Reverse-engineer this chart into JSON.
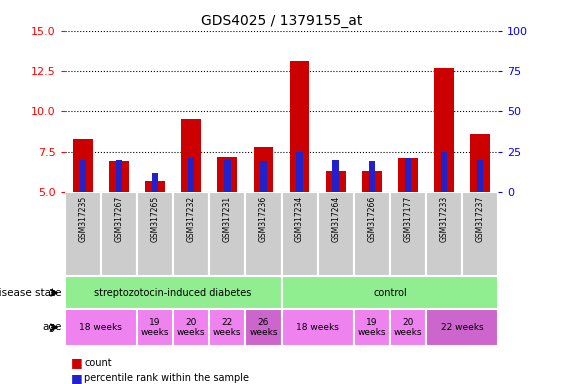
{
  "title": "GDS4025 / 1379155_at",
  "samples": [
    "GSM317235",
    "GSM317267",
    "GSM317265",
    "GSM317232",
    "GSM317231",
    "GSM317236",
    "GSM317234",
    "GSM317264",
    "GSM317266",
    "GSM317177",
    "GSM317233",
    "GSM317237"
  ],
  "count_values": [
    8.3,
    6.9,
    5.7,
    9.5,
    7.2,
    7.8,
    13.1,
    6.3,
    6.3,
    7.1,
    12.7,
    8.6
  ],
  "percentile_values": [
    20,
    20,
    12,
    21,
    20,
    19,
    25,
    20,
    19,
    21,
    25,
    20
  ],
  "ylim_left": [
    5,
    15
  ],
  "ylim_right": [
    0,
    100
  ],
  "yticks_left": [
    5,
    7.5,
    10,
    12.5,
    15
  ],
  "yticks_right": [
    0,
    25,
    50,
    75,
    100
  ],
  "bar_color_red": "#cc0000",
  "bar_color_blue": "#2222cc",
  "bg_color": "#ffffff",
  "disease_state_groups": [
    {
      "label": "streptozotocin-induced diabetes",
      "start": 0,
      "end": 6,
      "color": "#90ee90"
    },
    {
      "label": "control",
      "start": 6,
      "end": 12,
      "color": "#90ee90"
    }
  ],
  "age_groups": [
    {
      "label": "18 weeks",
      "start": 0,
      "end": 2,
      "color": "#ee82ee"
    },
    {
      "label": "19\nweeks",
      "start": 2,
      "end": 3,
      "color": "#ee82ee"
    },
    {
      "label": "20\nweeks",
      "start": 3,
      "end": 4,
      "color": "#ee82ee"
    },
    {
      "label": "22\nweeks",
      "start": 4,
      "end": 5,
      "color": "#ee82ee"
    },
    {
      "label": "26\nweeks",
      "start": 5,
      "end": 6,
      "color": "#cc66cc"
    },
    {
      "label": "18 weeks",
      "start": 6,
      "end": 8,
      "color": "#ee82ee"
    },
    {
      "label": "19\nweeks",
      "start": 8,
      "end": 9,
      "color": "#ee82ee"
    },
    {
      "label": "20\nweeks",
      "start": 9,
      "end": 10,
      "color": "#ee82ee"
    },
    {
      "label": "22 weeks",
      "start": 10,
      "end": 12,
      "color": "#cc66cc"
    }
  ],
  "sample_bg_color": "#cccccc",
  "legend_count_label": "count",
  "legend_pct_label": "percentile rank within the sample"
}
